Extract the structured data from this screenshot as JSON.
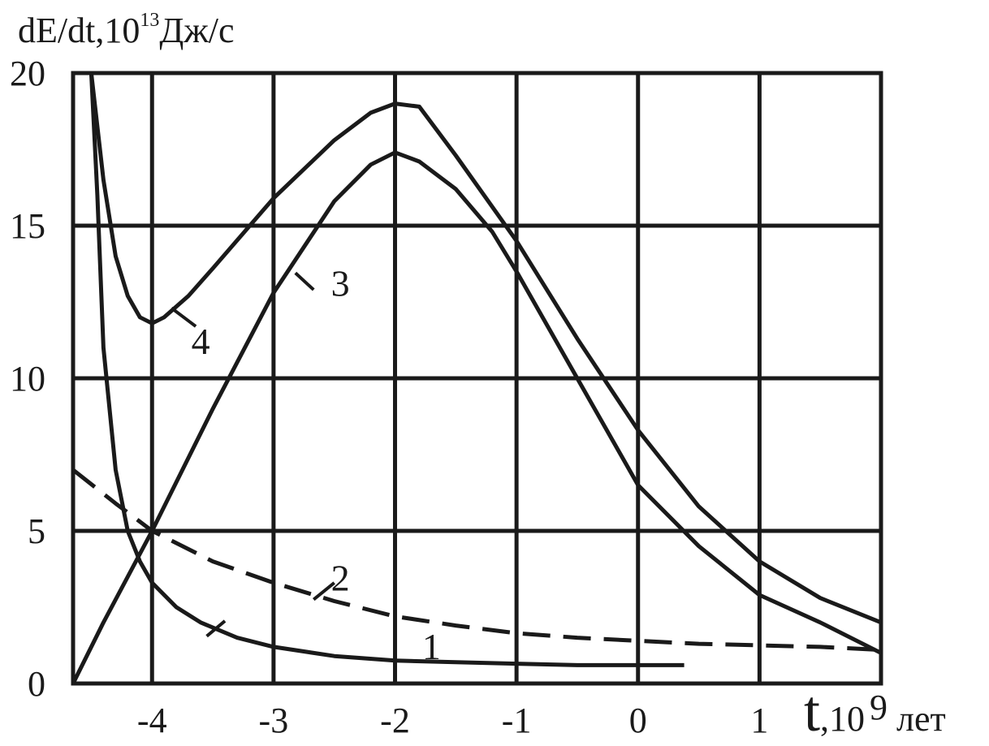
{
  "chart_data": {
    "type": "line",
    "title": "",
    "ylabel": {
      "prefix": "dE/dt,10",
      "exponent": "13",
      "unit": "Дж/с"
    },
    "xlabel": {
      "symbol": "t",
      "prefix": ",10",
      "exponent": "9",
      "unit": " лет"
    },
    "xlim": [
      -4.65,
      2.0
    ],
    "ylim": [
      0,
      20
    ],
    "grid": true,
    "x_ticks": [
      -4,
      -3,
      -2,
      -1,
      0,
      1
    ],
    "x_tick_labels": [
      "-4",
      "-3",
      "-2",
      "-1",
      "0",
      "1"
    ],
    "x_grid": [
      -4,
      -3,
      -2,
      -1,
      0,
      1
    ],
    "y_ticks": [
      0,
      5,
      10,
      15,
      20
    ],
    "y_tick_labels": [
      "0",
      "5",
      "10",
      "15",
      "20"
    ],
    "series": [
      {
        "name": "1",
        "dashed": false,
        "x": [
          -4.5,
          -4.45,
          -4.4,
          -4.3,
          -4.2,
          -4.1,
          -4.0,
          -3.8,
          -3.6,
          -3.3,
          -3.0,
          -2.5,
          -2.0,
          -1.5,
          -1.0,
          -0.5,
          0.0,
          0.38
        ],
        "y": [
          20.0,
          16.0,
          11.0,
          7.0,
          5.0,
          4.0,
          3.3,
          2.5,
          2.0,
          1.5,
          1.2,
          0.9,
          0.75,
          0.7,
          0.65,
          0.6,
          0.6,
          0.6
        ]
      },
      {
        "name": "2",
        "dashed": true,
        "x": [
          -4.65,
          -4.3,
          -4.0,
          -3.5,
          -3.0,
          -2.5,
          -2.0,
          -1.5,
          -1.0,
          -0.5,
          0.0,
          0.5,
          1.0,
          1.5,
          2.0
        ],
        "y": [
          7.0,
          5.9,
          5.0,
          4.0,
          3.3,
          2.7,
          2.2,
          1.9,
          1.65,
          1.5,
          1.4,
          1.3,
          1.25,
          1.2,
          1.1
        ]
      },
      {
        "name": "3",
        "dashed": false,
        "x": [
          -4.65,
          -4.4,
          -4.0,
          -3.5,
          -3.0,
          -2.5,
          -2.2,
          -2.0,
          -1.8,
          -1.5,
          -1.2,
          -1.0,
          -0.5,
          0.0,
          0.5,
          1.0,
          1.5,
          2.0
        ],
        "y": [
          0.0,
          2.0,
          5.0,
          9.0,
          12.8,
          15.8,
          17.0,
          17.4,
          17.1,
          16.2,
          14.8,
          13.5,
          10.0,
          6.5,
          4.5,
          2.9,
          2.0,
          1.0
        ]
      },
      {
        "name": "4",
        "dashed": false,
        "x": [
          -4.5,
          -4.4,
          -4.3,
          -4.2,
          -4.1,
          -4.0,
          -3.9,
          -3.7,
          -3.5,
          -3.0,
          -2.5,
          -2.2,
          -2.0,
          -1.8,
          -1.5,
          -1.0,
          -0.5,
          0.0,
          0.5,
          1.0,
          1.5,
          2.0
        ],
        "y": [
          20.0,
          16.5,
          14.0,
          12.7,
          12.0,
          11.8,
          12.0,
          12.7,
          13.6,
          15.9,
          17.8,
          18.7,
          19.0,
          18.9,
          17.3,
          14.5,
          11.3,
          8.3,
          5.8,
          4.0,
          2.8,
          2.0
        ]
      }
    ],
    "curve_labels": [
      {
        "text": "1",
        "x": -1.7,
        "y": 0.8,
        "leader": [
          [
            -3.55,
            1.55
          ],
          [
            -3.4,
            2.05
          ]
        ]
      },
      {
        "text": "2",
        "x": -2.45,
        "y": 3.05,
        "leader": [
          [
            -2.67,
            2.75
          ],
          [
            -2.5,
            3.3
          ]
        ]
      },
      {
        "text": "3",
        "x": -2.45,
        "y": 12.7,
        "leader": [
          [
            -2.82,
            13.45
          ],
          [
            -2.67,
            12.9
          ]
        ]
      },
      {
        "text": "4",
        "x": -3.6,
        "y": 10.8,
        "leader": [
          [
            -3.84,
            12.3
          ],
          [
            -3.64,
            11.7
          ]
        ]
      }
    ]
  }
}
